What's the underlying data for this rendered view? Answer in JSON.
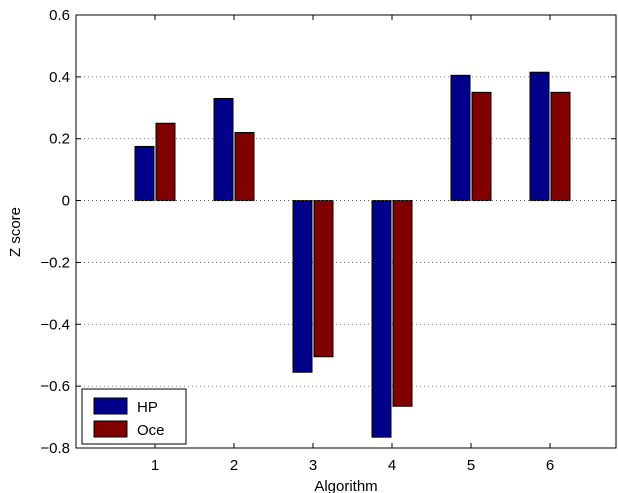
{
  "chart_data": {
    "type": "bar",
    "xlabel": "Algorithm",
    "ylabel": "Z score",
    "categories": [
      "1",
      "2",
      "3",
      "4",
      "5",
      "6"
    ],
    "series": [
      {
        "name": "HP",
        "color": "#00008b",
        "values": [
          0.175,
          0.33,
          -0.555,
          -0.765,
          0.405,
          0.415
        ]
      },
      {
        "name": "Oce",
        "color": "#800000",
        "values": [
          0.25,
          0.22,
          -0.505,
          -0.665,
          0.35,
          0.35
        ]
      }
    ],
    "ylim": [
      -0.8,
      0.6
    ],
    "yticks": [
      "0.6",
      "0.4",
      "0.2",
      "0",
      "−0.2",
      "−0.4",
      "−0.6",
      "−0.8"
    ],
    "ytick_values": [
      0.6,
      0.4,
      0.2,
      0,
      -0.2,
      -0.4,
      -0.6,
      -0.8
    ],
    "grid": "horizontal-dotted",
    "legend": "bottom-left"
  }
}
